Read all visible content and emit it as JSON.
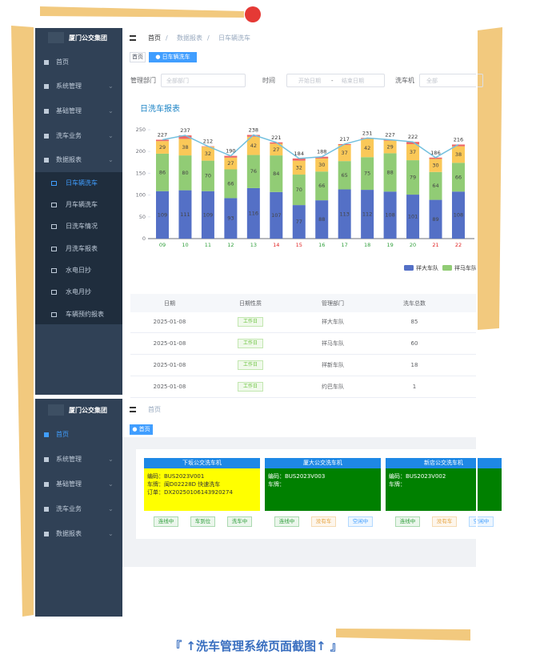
{
  "screen1": {
    "brand": "厦门公交集团",
    "menu": [
      "首页",
      "系统管理",
      "基础管理",
      "洗车业务",
      "数据报表"
    ],
    "submenu": [
      "日车辆洗车",
      "月车辆洗车",
      "日洗车情况",
      "月洗车报表",
      "水电日抄",
      "水电月抄",
      "车辆预约报表"
    ],
    "breadcrumb": [
      "首页",
      "/",
      "数据报表",
      "/",
      "日车辆洗车"
    ],
    "tabs": [
      "首页",
      "● 日车辆洗车"
    ],
    "filters": {
      "dept_label": "管理部门",
      "dept_placeholder": "全部部门",
      "time_label": "时间",
      "start_placeholder": "开始日期",
      "separator": "-",
      "end_placeholder": "结束日期",
      "machine_label": "洗车机",
      "machine_placeholder": "全部"
    },
    "table": {
      "headers": [
        "日期",
        "日期性质",
        "管理部门",
        "洗车总数"
      ],
      "rows": [
        [
          "2025-01-08",
          "工作日",
          "祥大车队",
          85
        ],
        [
          "2025-01-08",
          "工作日",
          "祥马车队",
          60
        ],
        [
          "2025-01-08",
          "工作日",
          "祥新车队",
          18
        ],
        [
          "2025-01-08",
          "工作日",
          "约巴车队",
          1
        ]
      ]
    }
  },
  "chart_data": {
    "type": "bar",
    "stacked": true,
    "title": "日洗车报表",
    "categories": [
      "09",
      "10",
      "11",
      "12",
      "13",
      "14",
      "15",
      "16",
      "17",
      "18",
      "19",
      "20",
      "21",
      "22"
    ],
    "category_colors": [
      "#2e9e3a",
      "#2e9e3a",
      "#2e9e3a",
      "#2e9e3a",
      "#2e9e3a",
      "#e02020",
      "#e02020",
      "#2e9e3a",
      "#2e9e3a",
      "#2e9e3a",
      "#2e9e3a",
      "#2e9e3a",
      "#e02020",
      "#e02020"
    ],
    "series": [
      {
        "name": "祥大车队",
        "color": "#5470c6",
        "labels": true,
        "values": [
          109,
          111,
          109,
          93,
          116,
          107,
          77,
          88,
          113,
          112,
          108,
          101,
          89,
          108
        ]
      },
      {
        "name": "祥马车队",
        "color": "#91cc75",
        "labels": true,
        "values": [
          86,
          80,
          70,
          66,
          76,
          84,
          70,
          66,
          65,
          75,
          88,
          79,
          64,
          66
        ]
      },
      {
        "color": "#fac858",
        "labels": true,
        "values": [
          29,
          38,
          32,
          27,
          42,
          27,
          32,
          30,
          37,
          42,
          29,
          37,
          30,
          38
        ]
      },
      {
        "color": "#ee6666",
        "labels": false,
        "values": [
          3,
          8,
          1,
          4,
          4,
          3,
          5,
          4,
          2,
          2,
          2,
          5,
          3,
          4
        ]
      },
      {
        "type": "line",
        "color": "#73c0de",
        "labels": true,
        "values": [
          227,
          237,
          212,
          190,
          238,
          221,
          184,
          188,
          217,
          231,
          227,
          222,
          186,
          216
        ]
      }
    ],
    "ylim": [
      0,
      250
    ],
    "yticks": [
      0,
      50,
      100,
      150,
      200,
      250
    ],
    "grid": false,
    "legend": "bottom-right"
  },
  "screen2": {
    "brand": "厦门公交集团",
    "menu": [
      "首页",
      "系统管理",
      "基础管理",
      "洗车业务",
      "数据报表"
    ],
    "breadcrumb": [
      "首页"
    ],
    "tabs": [
      "● 首页"
    ],
    "cards": [
      {
        "title": "下坂公交洗车机",
        "color": "#ffff00",
        "text_color": "#333333",
        "lines": [
          "编码：BUS2023V001",
          "车牌：闽D02228D 快速洗车",
          "订单：DX20250106143920274"
        ],
        "status": [
          {
            "text": "连线中",
            "color": "#2e9e3a"
          },
          {
            "text": "车到位",
            "color": "#2e9e3a"
          },
          {
            "text": "洗车中",
            "color": "#2e9e3a"
          }
        ]
      },
      {
        "title": "厦大公交洗车机",
        "color": "#008000",
        "text_color": "#ffffff",
        "lines": [
          "编码：BUS2023V003",
          "车牌："
        ],
        "status": [
          {
            "text": "连线中",
            "color": "#2e9e3a"
          },
          {
            "text": "没有车",
            "color": "#e6a23c"
          },
          {
            "text": "空闲中",
            "color": "#409eff"
          }
        ]
      },
      {
        "title": "新店公交洗车机",
        "color": "#008000",
        "text_color": "#ffffff",
        "lines": [
          "编码：BUS2023V002",
          "车牌："
        ],
        "status": [
          {
            "text": "连线中",
            "color": "#2e9e3a"
          },
          {
            "text": "没有车",
            "color": "#e6a23c"
          },
          {
            "text": "空闲中",
            "color": "#409eff"
          }
        ]
      }
    ]
  },
  "caption": "『 ↑洗车管理系统页面截图↑ 』"
}
